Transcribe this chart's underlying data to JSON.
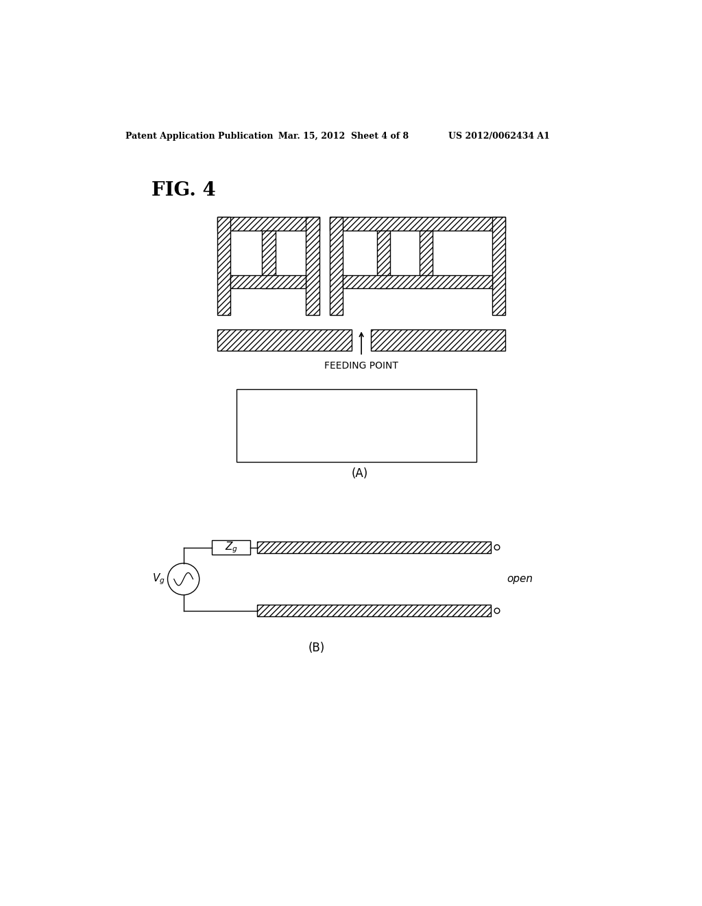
{
  "bg_color": "#ffffff",
  "header_left": "Patent Application Publication",
  "header_mid": "Mar. 15, 2012  Sheet 4 of 8",
  "header_right": "US 2012/0062434 A1",
  "fig_label": "FIG. 4",
  "label_A": "(A)",
  "label_B": "(B)",
  "feeding_point_label": "FEEDING POINT",
  "open_label": "open",
  "line_color": "#000000",
  "hatch_pattern": "////",
  "bg_color_white": "#ffffff"
}
